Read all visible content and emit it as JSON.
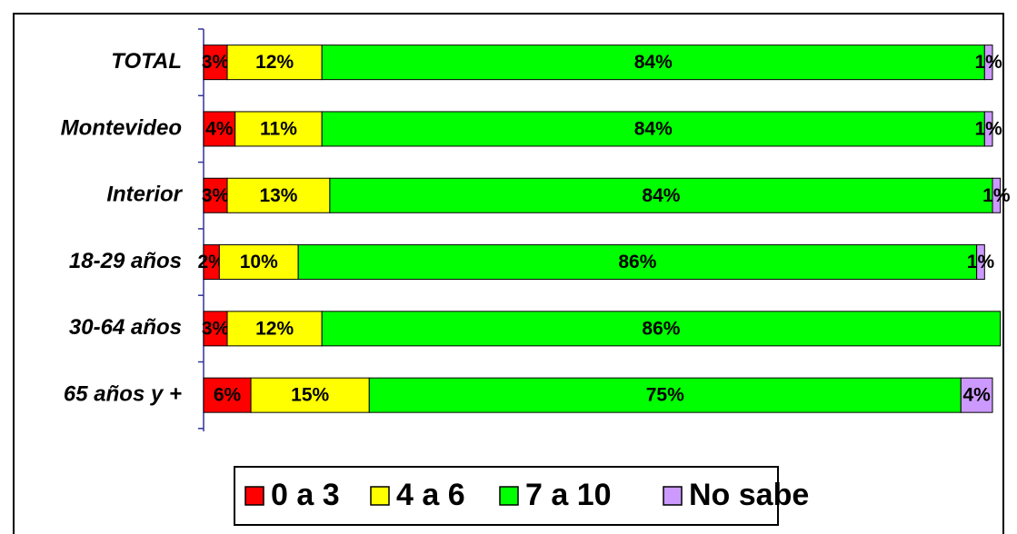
{
  "chart_data": {
    "type": "stacked-bar-horizontal",
    "categories": [
      "TOTAL",
      "Montevideo",
      "Interior",
      "18-29 años",
      "30-64 años",
      "65 años y +"
    ],
    "xlim": [
      0,
      100
    ],
    "series": [
      {
        "name": "0 a 3",
        "color": "#ff0000",
        "values": [
          3,
          4,
          3,
          2,
          3,
          6
        ],
        "value_labels": [
          "3%",
          "4%",
          "3%",
          "2%",
          "3%",
          "6%"
        ]
      },
      {
        "name": "4 a 6",
        "color": "#ffff00",
        "values": [
          12,
          11,
          13,
          10,
          12,
          15
        ],
        "value_labels": [
          "12%",
          "11%",
          "13%",
          "10%",
          "12%",
          "15%"
        ]
      },
      {
        "name": "7 a 10",
        "color": "#00ff00",
        "values": [
          84,
          84,
          84,
          86,
          86,
          75
        ],
        "value_labels": [
          "84%",
          "84%",
          "84%",
          "86%",
          "86%",
          "75%"
        ]
      },
      {
        "name": "No sabe",
        "color": "#cc99ff",
        "values": [
          1,
          1,
          1,
          1,
          null,
          4
        ],
        "value_labels": [
          "1%",
          "1%",
          "1%",
          "1%",
          null,
          "4%"
        ]
      }
    ]
  }
}
